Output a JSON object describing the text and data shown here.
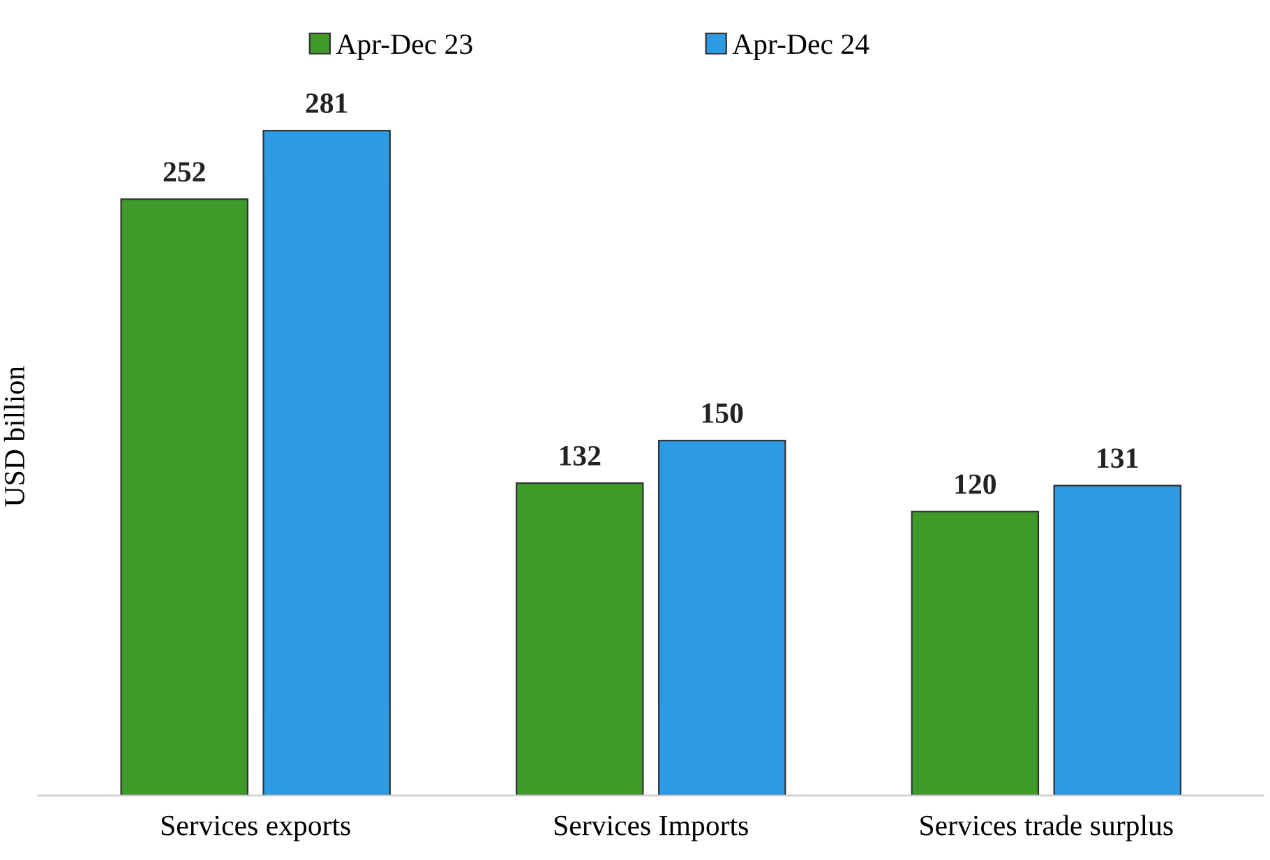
{
  "chart_data": {
    "type": "bar",
    "ylabel": "USD billion",
    "categories": [
      "Services exports",
      "Services Imports",
      "Services trade surplus"
    ],
    "series": [
      {
        "name": "Apr-Dec 23",
        "color": "#3f9a2a",
        "values": [
          252,
          132,
          120
        ]
      },
      {
        "name": "Apr-Dec 24",
        "color": "#2d9be3",
        "values": [
          281,
          150,
          131
        ]
      }
    ],
    "data_labels": true,
    "legend": "top",
    "grid": false,
    "tick_labels": "x"
  }
}
